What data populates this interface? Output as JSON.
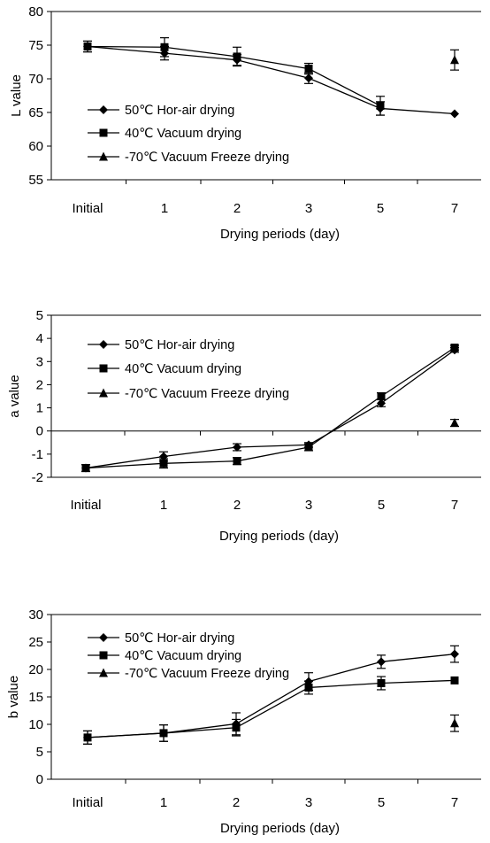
{
  "chart_data": [
    {
      "type": "line",
      "ylabel": "L value",
      "xlabel": "Drying periods (day)",
      "categories": [
        "Initial",
        "1",
        "2",
        "3",
        "5",
        "7"
      ],
      "ylim": [
        55,
        80
      ],
      "yticks": [
        55,
        60,
        65,
        70,
        75,
        80
      ],
      "series": [
        {
          "name": "50℃ Hor-air drying",
          "marker": "diamond",
          "values": [
            74.8,
            73.8,
            72.8,
            70.1,
            65.6,
            64.8
          ],
          "errors": [
            0.8,
            1.0,
            0.8,
            0.8,
            1.0,
            0
          ]
        },
        {
          "name": "40℃ Vacuum drying",
          "marker": "square",
          "values": [
            74.8,
            74.7,
            73.3,
            71.5,
            66.0,
            null
          ],
          "errors": [
            0.8,
            1.4,
            1.4,
            0.8,
            1.4,
            0
          ]
        },
        {
          "name": "-70℃ Vacuum Freeze drying",
          "marker": "triangle",
          "values": [
            null,
            null,
            null,
            null,
            null,
            72.8
          ],
          "errors": [
            0,
            0,
            0,
            0,
            0,
            1.5
          ]
        }
      ]
    },
    {
      "type": "line",
      "ylabel": "a value",
      "xlabel": "Drying periods (day)",
      "categories": [
        "Initial",
        "1",
        "2",
        "3",
        "5",
        "7"
      ],
      "ylim": [
        -2,
        5
      ],
      "yticks": [
        -2,
        -1,
        0,
        1,
        2,
        3,
        4,
        5
      ],
      "series": [
        {
          "name": "50℃ Hor-air drying",
          "marker": "diamond",
          "values": [
            -1.6,
            -1.1,
            -0.7,
            -0.6,
            1.2,
            3.5
          ],
          "errors": [
            0.15,
            0.2,
            0.15,
            0.1,
            0.15,
            0.1
          ]
        },
        {
          "name": "40℃ Vacuum drying",
          "marker": "square",
          "values": [
            -1.6,
            -1.4,
            -1.3,
            -0.7,
            1.5,
            3.6
          ],
          "errors": [
            0.15,
            0.2,
            0.15,
            0.15,
            0.15,
            0.1
          ]
        },
        {
          "name": "-70℃ Vacuum Freeze drying",
          "marker": "triangle",
          "values": [
            null,
            null,
            null,
            null,
            null,
            0.35
          ],
          "errors": [
            0,
            0,
            0,
            0,
            0,
            0.15
          ]
        }
      ]
    },
    {
      "type": "line",
      "ylabel": "b value",
      "xlabel": "Drying periods (day)",
      "categories": [
        "Initial",
        "1",
        "2",
        "3",
        "5",
        "7"
      ],
      "ylim": [
        0,
        30
      ],
      "yticks": [
        0,
        5,
        10,
        15,
        20,
        25,
        30
      ],
      "series": [
        {
          "name": "50℃ Hor-air drying",
          "marker": "diamond",
          "values": [
            7.6,
            8.4,
            10.1,
            17.8,
            21.4,
            22.8
          ],
          "errors": [
            1.2,
            1.5,
            2.0,
            1.6,
            1.2,
            1.5
          ]
        },
        {
          "name": "40℃ Vacuum drying",
          "marker": "square",
          "values": [
            7.6,
            8.4,
            9.4,
            16.7,
            17.5,
            18.0
          ],
          "errors": [
            1.2,
            1.5,
            1.5,
            1.2,
            1.2,
            0
          ]
        },
        {
          "name": "-70℃ Vacuum Freeze drying",
          "marker": "triangle",
          "values": [
            null,
            null,
            null,
            null,
            null,
            10.2
          ],
          "errors": [
            0,
            0,
            0,
            0,
            0,
            1.5
          ]
        }
      ]
    }
  ]
}
